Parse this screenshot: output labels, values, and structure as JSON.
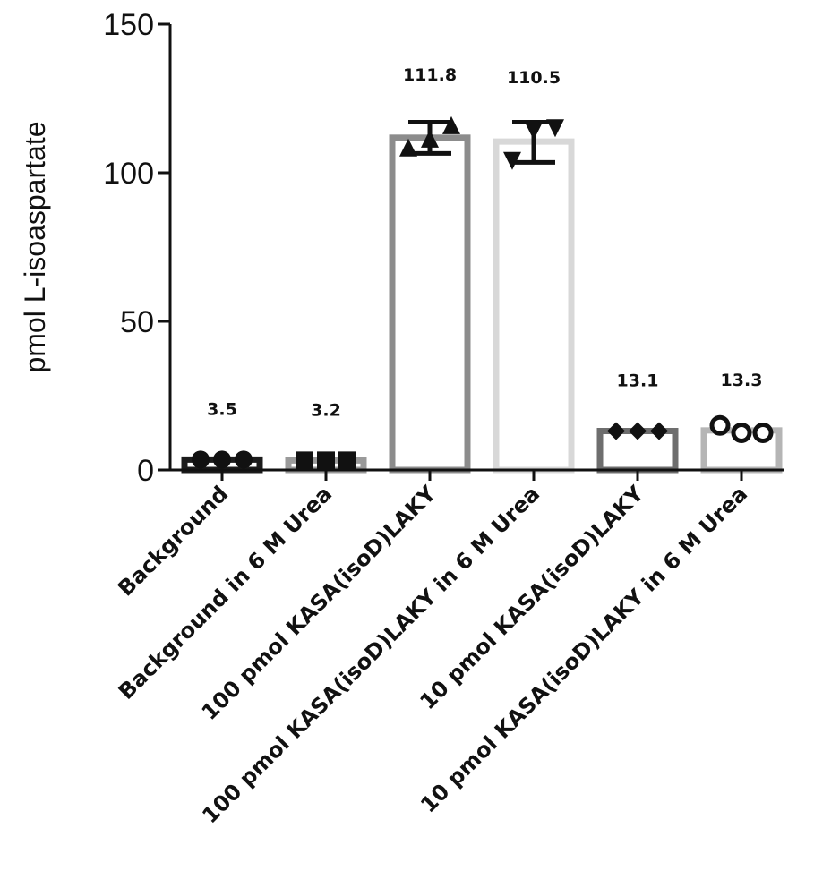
{
  "chart_data": {
    "type": "bar",
    "title": "",
    "ylabel": "pmol L-isoaspartate",
    "xlabel": "",
    "ylim": [
      0,
      150
    ],
    "yticks": [
      0,
      50,
      100,
      150
    ],
    "grid": false,
    "categories": [
      "Background",
      "Background in 6 M Urea",
      "100 pmol KASA(isoD)LAKY",
      "100 pmol KASA(isoD)LAKY in 6 M Urea",
      "10 pmol KASA(isoD)LAKY",
      "10 pmol KASA(isoD)LAKY in 6 M Urea"
    ],
    "values": [
      3.5,
      3.2,
      111.8,
      110.5,
      13.1,
      13.3
    ],
    "value_labels": [
      "3.5",
      "3.2",
      "111.8",
      "110.5",
      "13.1",
      "13.3"
    ],
    "error_low": [
      3.5,
      3.2,
      106.5,
      103.5,
      13.1,
      13.3
    ],
    "error_high": [
      3.5,
      3.2,
      117.0,
      117.0,
      13.1,
      13.3
    ],
    "points": [
      [
        3.5,
        3.5,
        3.5
      ],
      [
        3.2,
        3.2,
        3.2
      ],
      [
        108.5,
        111.5,
        116.0
      ],
      [
        104.0,
        114.0,
        115.0
      ],
      [
        13.1,
        13.1,
        13.1
      ],
      [
        15.0,
        12.5,
        12.5
      ]
    ],
    "markers": [
      "circle",
      "square",
      "triangle-up",
      "triangle-down",
      "diamond",
      "open-circle"
    ],
    "bar_colors": [
      "#1c1c1c",
      "#9a9a9a",
      "#8c8c8c",
      "#d8d8d8",
      "#6e6e6e",
      "#b5b5b5"
    ]
  }
}
